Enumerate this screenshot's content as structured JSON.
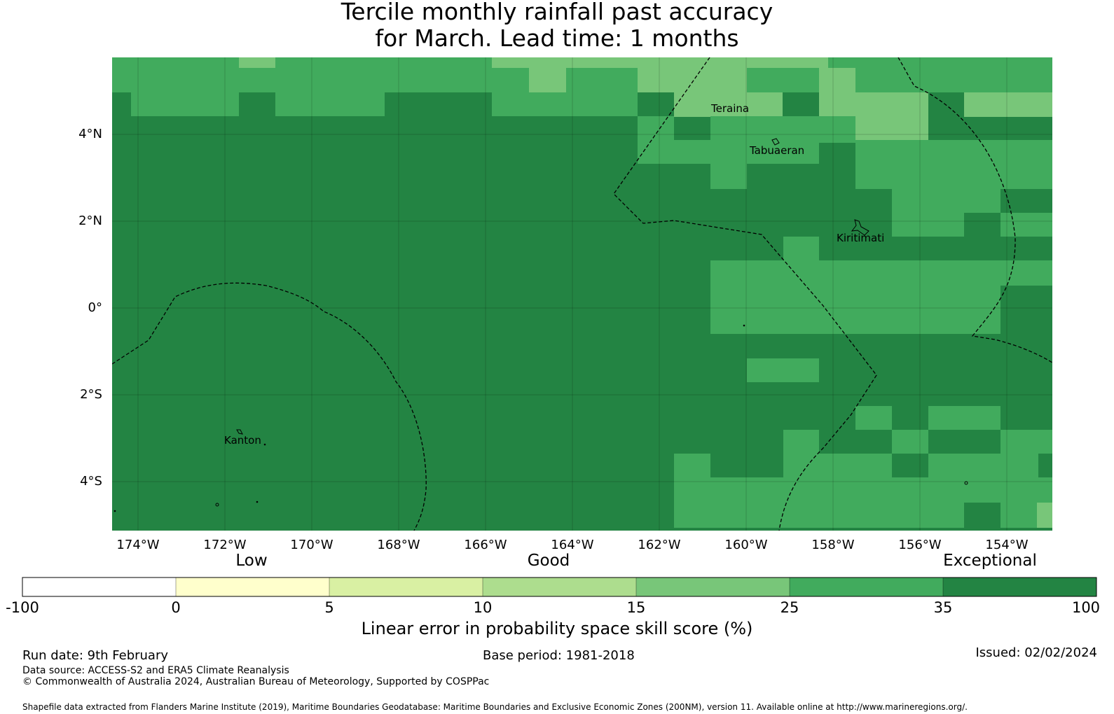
{
  "title": {
    "line1": "Tercile monthly rainfall past accuracy",
    "line2": "for March. Lead time: 1 months"
  },
  "map": {
    "lat_labels": [
      "4°N",
      "2°N",
      "0°",
      "2°S",
      "4°S"
    ],
    "lon_labels": [
      "174°W",
      "172°W",
      "170°W",
      "168°W",
      "166°W",
      "164°W",
      "162°W",
      "160°W",
      "158°W",
      "156°W",
      "154°W"
    ],
    "places": [
      "Teraina",
      "Tabuaeran",
      "Kiritimati",
      "Kanton"
    ]
  },
  "legend": {
    "categories": [
      "Low",
      "Good",
      "Exceptional"
    ],
    "ticks": [
      "-100",
      "0",
      "5",
      "10",
      "15",
      "25",
      "35",
      "100"
    ],
    "colors": [
      "#ffffff",
      "#ffffcc",
      "#d9f0a3",
      "#addd8e",
      "#78c679",
      "#41ab5d",
      "#238443"
    ],
    "title": "Linear error in probability space skill score (%)"
  },
  "footer": {
    "run_date": "Run date: 9th February",
    "base_period": "Base period: 1981-2018",
    "issued": "Issued: 02/02/2024",
    "data_source": "Data source: ACCESS-S2 and ERA5 Climate Reanalysis",
    "copyright": "© Commonwealth of Australia 2024, Australian Bureau of Meteorology, Supported by COSPPac",
    "shapefile": "Shapefile data extracted from Flanders Marine Institute (2019), Maritime Boundaries Geodatabase: Maritime Boundaries and Exclusive Economic Zones (200NM), version 11. Available online at http://www.marineregions.org/."
  }
}
